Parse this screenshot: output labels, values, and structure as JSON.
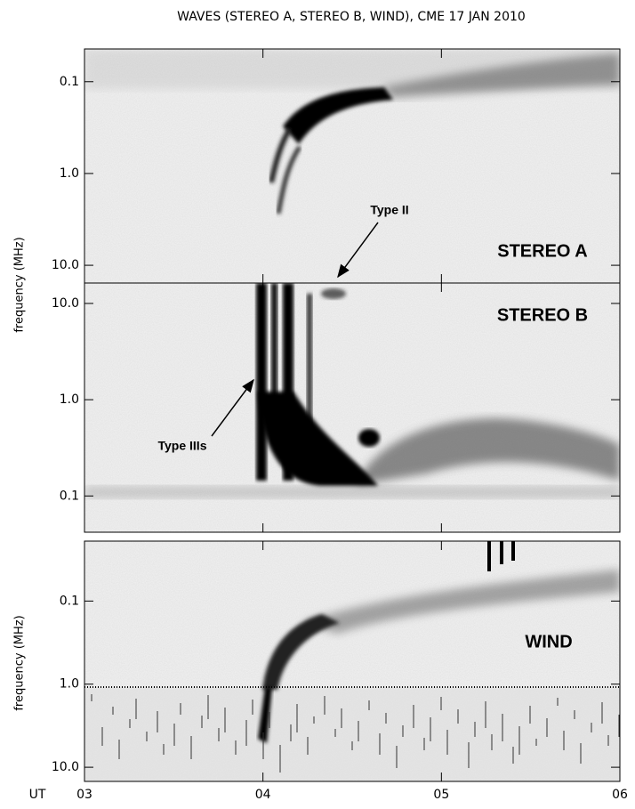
{
  "title": "WAVES (STEREO A, STEREO B, WIND), CME  17 JAN 2010",
  "chart_data": [
    {
      "type": "spectrogram",
      "label": "STEREO A",
      "ylabel": "frequency (MHz)",
      "log_scale": true,
      "xlim": [
        3,
        6
      ],
      "ylim": [
        15.6,
        0.044
      ],
      "yticks": [
        0.1,
        {
          "value": 1,
          "label": "1.0"
        },
        {
          "value": 10,
          "label": "10.0"
        }
      ],
      "annotations": [
        "Type II"
      ]
    },
    {
      "type": "spectrogram",
      "label": "STEREO B",
      "log_scale": true,
      "xlim": [
        3,
        6
      ],
      "ylim": [
        0.042,
        16.3
      ],
      "yticks": [
        {
          "value": 10,
          "label": "10.0"
        },
        {
          "value": 1,
          "label": "1.0"
        },
        0.1
      ],
      "annotations": [
        "Type IIIs"
      ]
    },
    {
      "type": "spectrogram",
      "label": "WIND",
      "ylabel": "frequency (MHz)",
      "xlabel": "UT",
      "log_scale": true,
      "xlim": [
        3,
        6
      ],
      "ylim": [
        14.8,
        0.019
      ],
      "yticks": [
        0.1,
        {
          "value": 1,
          "label": "1.0"
        },
        {
          "value": 10,
          "label": "10.0"
        }
      ],
      "xticks": [
        {
          "value": 3,
          "label": "03"
        },
        {
          "value": 4,
          "label": "04"
        },
        {
          "value": 5,
          "label": "05"
        },
        {
          "value": 6,
          "label": "06"
        }
      ]
    }
  ]
}
